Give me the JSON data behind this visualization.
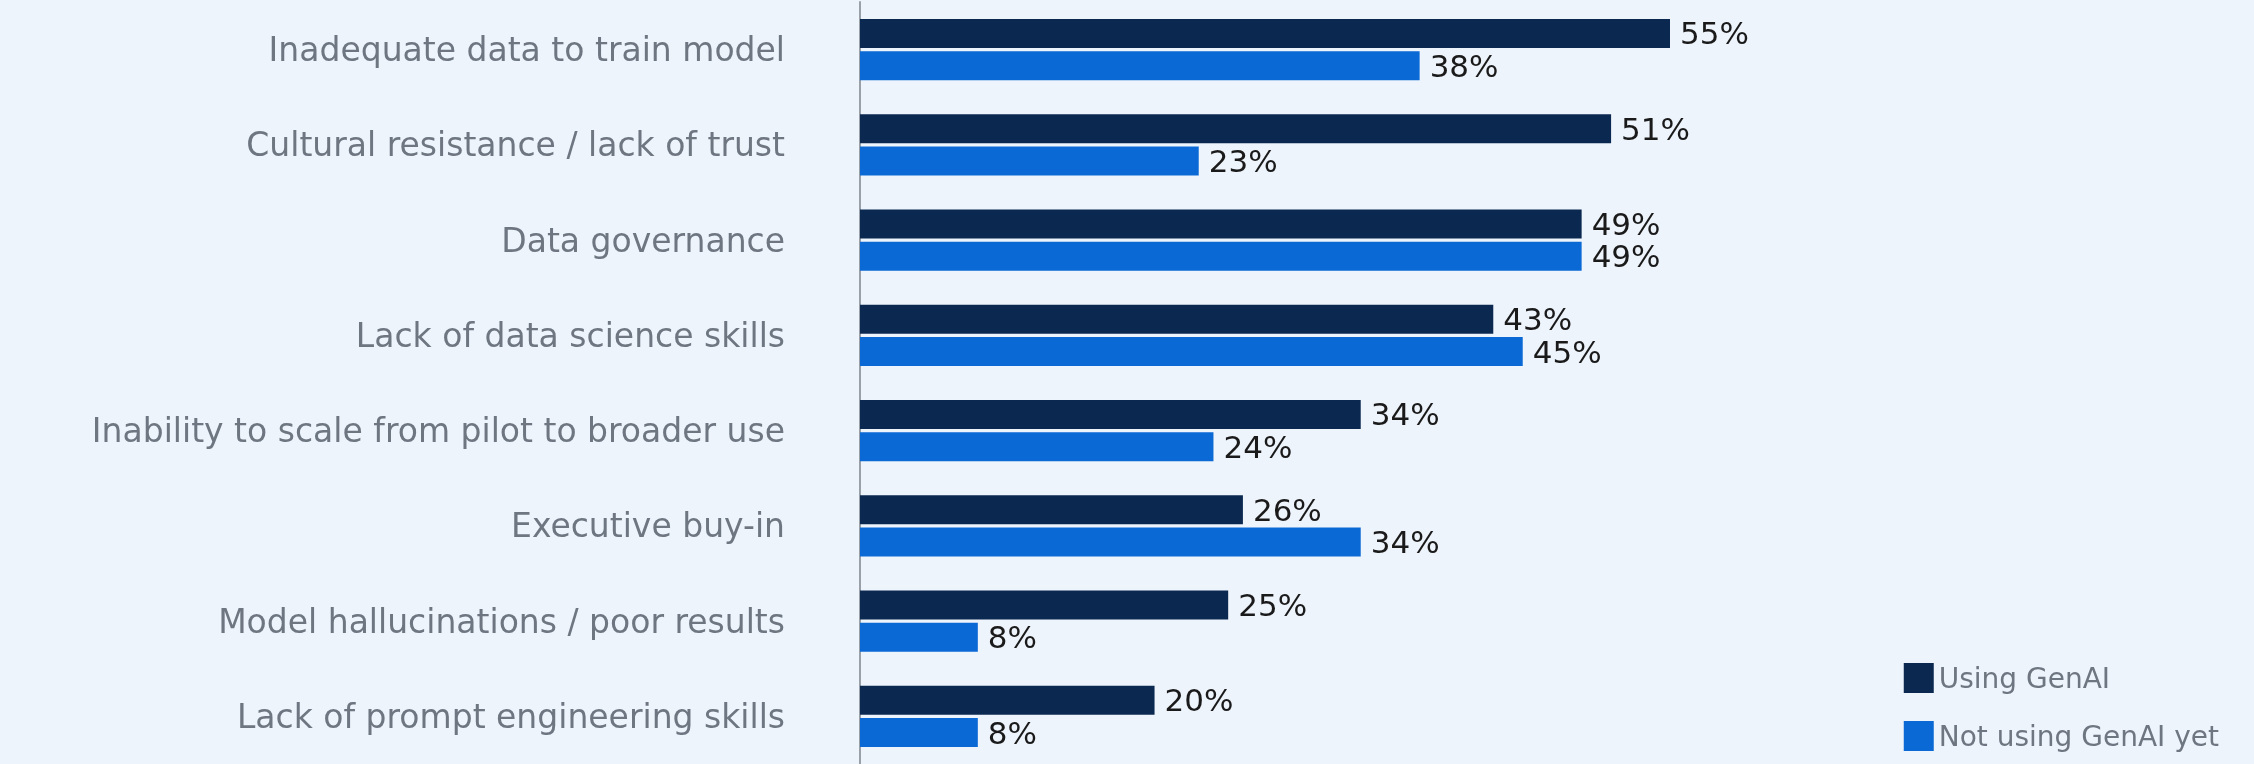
{
  "chart_data": {
    "type": "bar",
    "orientation": "horizontal",
    "categories": [
      "Inadequate data to train model",
      "Cultural resistance / lack of trust",
      "Data governance",
      "Lack of data science skills",
      "Inability to scale from pilot to broader use",
      "Executive buy-in",
      "Model hallucinations / poor results",
      "Lack of prompt engineering skills"
    ],
    "series": [
      {
        "name": "Using GenAI",
        "color": "#0b2850",
        "values": [
          55,
          51,
          49,
          43,
          34,
          26,
          25,
          20
        ],
        "value_labels": [
          "55%",
          "51%",
          "49%",
          "43%",
          "34%",
          "26%",
          "25%",
          "20%"
        ]
      },
      {
        "name": "Not using GenAI yet",
        "color": "#0a69d4",
        "values": [
          38,
          23,
          49,
          45,
          24,
          34,
          8,
          8
        ],
        "value_labels": [
          "38%",
          "23%",
          "49%",
          "45%",
          "24%",
          "34%",
          "8%",
          "8%"
        ]
      }
    ],
    "legend": "bottom right"
  }
}
